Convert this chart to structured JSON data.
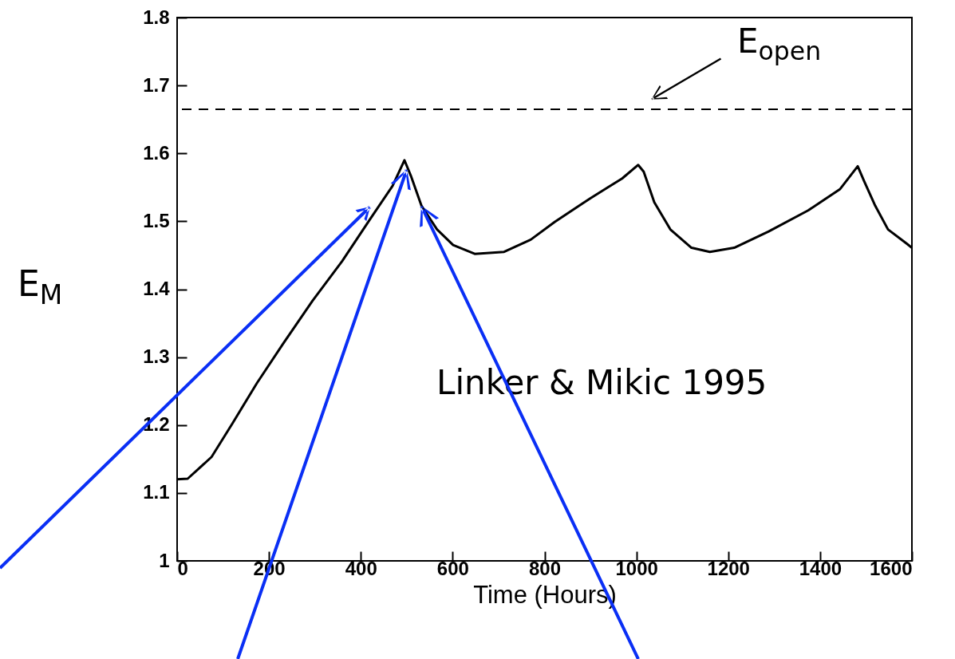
{
  "chart_data": {
    "type": "line",
    "xlabel": "Time (Hours)",
    "ylabel": "E$_{M}$",
    "x": [
      0,
      23,
      75,
      121,
      174,
      231,
      295,
      359,
      422,
      469,
      495,
      509,
      532,
      566,
      601,
      648,
      712,
      770,
      822,
      900,
      969,
      1004,
      1016,
      1039,
      1074,
      1120,
      1160,
      1213,
      1288,
      1374,
      1443,
      1482,
      1496,
      1520,
      1548,
      1589,
      1600
    ],
    "series": [
      {
        "color": "#000000",
        "values": [
          1.12,
          1.121,
          1.153,
          1.203,
          1.262,
          1.32,
          1.383,
          1.441,
          1.505,
          1.552,
          1.59,
          1.567,
          1.523,
          1.488,
          1.465,
          1.452,
          1.455,
          1.473,
          1.499,
          1.534,
          1.563,
          1.583,
          1.573,
          1.528,
          1.488,
          1.461,
          1.455,
          1.461,
          1.485,
          1.516,
          1.547,
          1.581,
          1.559,
          1.523,
          1.488,
          1.467,
          1.461
        ]
      }
    ],
    "xlim": [
      0,
      1600
    ],
    "xticks": [
      0,
      200,
      400,
      600,
      800,
      1000,
      1200,
      1400,
      1600
    ],
    "ylim": [
      1,
      1.8
    ],
    "yticks": [
      1,
      1.1,
      1.2,
      1.3,
      1.4,
      1.5,
      1.6,
      1.7,
      1.8
    ],
    "ref_lines": [
      {
        "axis": "y",
        "value": 1.665,
        "label": "E$_{open}$",
        "color": "#000000",
        "line_style": "dashed"
      }
    ],
    "annotations": [
      "Linker & Mikic 1995"
    ],
    "grid": false,
    "marker": "none",
    "line_style": "solid"
  }
}
